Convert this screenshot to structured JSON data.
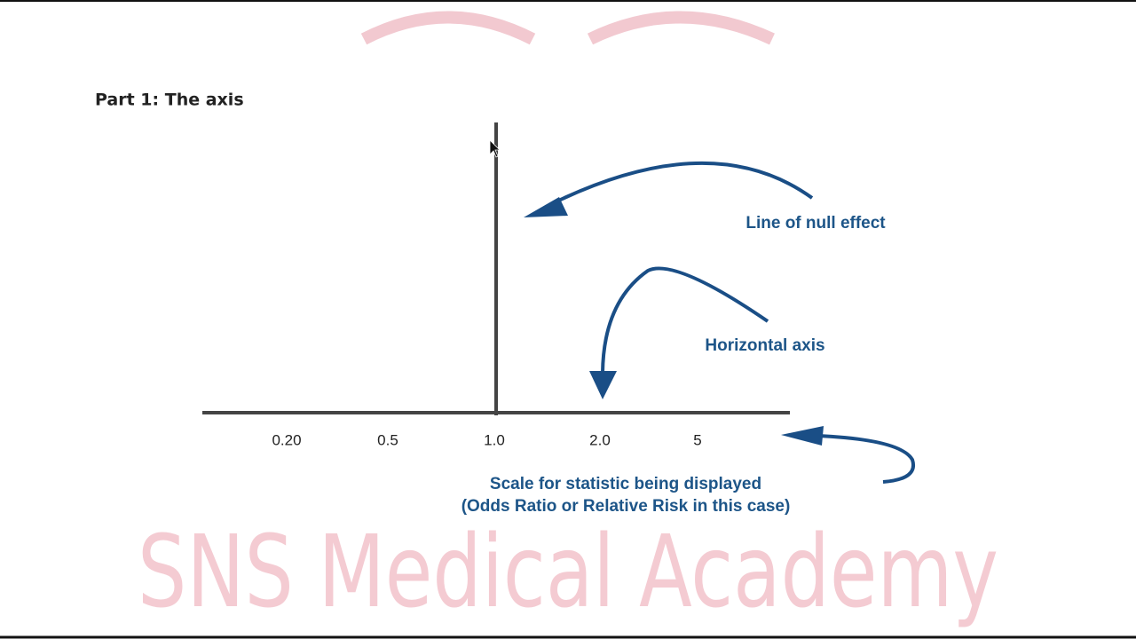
{
  "title": "Part 1: The axis",
  "axis_labels": [
    "0.20",
    "0.5",
    "1.0",
    "2.0",
    "5"
  ],
  "annotations": {
    "null_line": "Line of null effect",
    "horizontal_axis": "Horizontal axis",
    "scale_line1": "Scale for statistic being displayed",
    "scale_line2": "(Odds Ratio or Relative Risk in this case)"
  },
  "watermark": "SNS Medical Academy"
}
